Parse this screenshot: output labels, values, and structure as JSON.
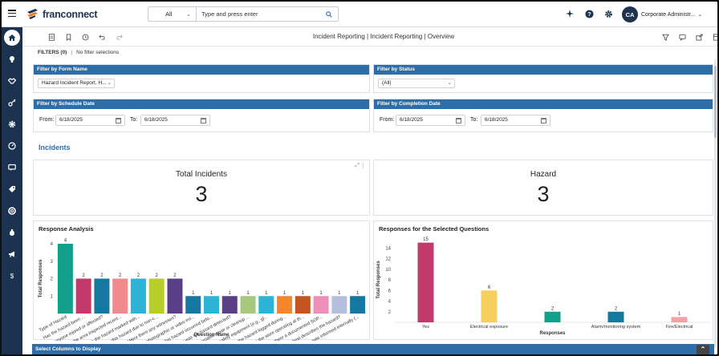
{
  "topbar": {
    "logo_text": "franconnect",
    "search_scope": "All",
    "search_placeholder": "Type and press enter",
    "user_initials": "CA",
    "user_name": "Corporate Administr..."
  },
  "toolbar": {
    "title": "Incident Reporting | Incident Reporting | Overview"
  },
  "filters": {
    "label": "FILTERS (0)",
    "summary": "No filter selections",
    "form_name": {
      "heading": "Filter by Form Name",
      "value": "Hazard Incident Report, H..."
    },
    "status": {
      "heading": "Filter by Status",
      "value": "(All)"
    },
    "schedule_date": {
      "heading": "Filter by Schedule Date",
      "from_label": "From:",
      "from": "6/18/2025",
      "to_label": "To:",
      "to": "6/18/2025"
    },
    "completion_date": {
      "heading": "Filter by Completion Date",
      "from_label": "From:",
      "from": "6/18/2025",
      "to_label": "To:",
      "to": "6/18/2025"
    }
  },
  "section_title": "Incidents",
  "kpis": {
    "total": {
      "title": "Total Incidents",
      "value": "3"
    },
    "hazard": {
      "title": "Hazard",
      "value": "3"
    }
  },
  "bottom": {
    "label": "Select Columns to Display"
  },
  "chart_data": [
    {
      "type": "bar",
      "title": "Response Analysis",
      "xlabel": "Question Name",
      "ylabel": "Total Responses",
      "ylim": [
        0,
        4
      ],
      "yticks": [
        1,
        2,
        3,
        4
      ],
      "categories": [
        "Type of Hazard",
        "Has the hazard been ...",
        "Was anyone injured or affected?",
        "Was the area inspected recent...",
        "Was the hazard marked with...",
        "Was this hazard due to non-c...",
        "Were there any witnesses?",
        "Has photographic or video evi...",
        "Has this hazard occurred befo...",
        "How was the hazard detected?",
        "Is specialist repair or cleanup ...",
        "Has safety equipment (e.g., gl...",
        "Was the hazard logged during...",
        "Was the store operating at th...",
        "Was there a documented SOP...",
        "What best describes the hazard?",
        "Who was informed internally (..."
      ],
      "values": [
        4,
        2,
        2,
        2,
        2,
        2,
        2,
        1,
        1,
        1,
        1,
        1,
        1,
        1,
        1,
        1,
        1
      ],
      "colors": [
        "#12a08a",
        "#c23a6a",
        "#1478a0",
        "#f08a8f",
        "#2db3d6",
        "#b7cd2a",
        "#5b3f86",
        "#1478a0",
        "#2db3d6",
        "#5b3f86",
        "#a6c97e",
        "#2db3d6",
        "#f5862a",
        "#c2561e",
        "#ee8fb9",
        "#b6c0de",
        "#1478a0"
      ]
    },
    {
      "type": "bar",
      "title": "Responses for the Selected Questions",
      "xlabel": "Responses",
      "ylabel": "Total Responses",
      "ylim": [
        0,
        16
      ],
      "yticks": [
        2,
        4,
        6,
        8,
        10,
        12,
        14
      ],
      "categories": [
        "Yes",
        "Electrical exposure",
        "",
        "Alarm/monitoring system",
        "Fire/Electrical"
      ],
      "values": [
        15,
        6,
        2,
        2,
        1
      ],
      "colors": [
        "#c23a6a",
        "#f7cf61",
        "#12a08a",
        "#1478a0",
        "#f3a1a6"
      ]
    }
  ]
}
